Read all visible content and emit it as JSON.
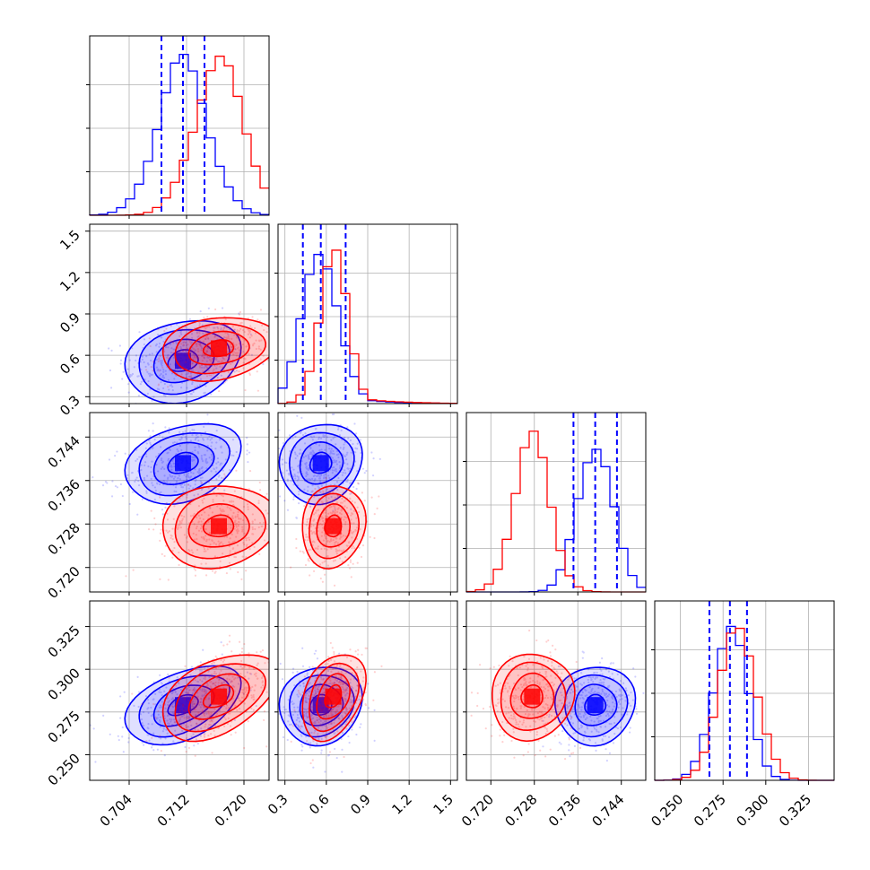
{
  "chart_data": {
    "type": "corner",
    "grid": true,
    "colors": {
      "series_a": "#0000ff",
      "series_b": "#ff0000"
    },
    "series": [
      {
        "color": "blue",
        "mean": [
          0.7115,
          0.56,
          0.7392,
          0.279
        ],
        "sd": [
          0.0035,
          0.13,
          0.0032,
          0.01
        ],
        "quantiles": [
          [
            0.7085,
            0.7115,
            0.7145
          ],
          [
            0.43,
            0.56,
            0.74
          ],
          [
            0.7352,
            0.7392,
            0.7432
          ],
          [
            0.267,
            0.279,
            0.289
          ]
        ]
      },
      {
        "color": "red",
        "mean": [
          0.7165,
          0.65,
          0.7276,
          0.284
        ],
        "sd": [
          0.0035,
          0.1,
          0.0033,
          0.011
        ]
      }
    ],
    "correlations": {
      "blue": {
        "1-0": 0.2,
        "2-0": 0.3,
        "2-1": 0.1,
        "3-0": 0.45,
        "3-1": 0.1,
        "3-2": 0.05
      },
      "red": {
        "1-0": 0.2,
        "2-0": 0.1,
        "2-1": 0.1,
        "3-0": 0.45,
        "3-1": 0.35,
        "3-2": 0.05
      }
    },
    "params": [
      {
        "range": [
          0.6985,
          0.7235
        ],
        "ticks": [
          "0.704",
          "0.712",
          "0.720"
        ],
        "tick_values": [
          0.704,
          0.712,
          0.72
        ]
      },
      {
        "range": [
          0.25,
          1.55
        ],
        "ticks": [
          "0.3",
          "0.6",
          "0.9",
          "1.2",
          "1.5"
        ],
        "tick_values": [
          0.3,
          0.6,
          0.9,
          1.2,
          1.5
        ]
      },
      {
        "range": [
          0.7155,
          0.7485
        ],
        "ticks": [
          "0.720",
          "0.728",
          "0.736",
          "0.744"
        ],
        "tick_values": [
          0.72,
          0.728,
          0.736,
          0.744
        ]
      },
      {
        "range": [
          0.235,
          0.34
        ],
        "ticks": [
          "0.250",
          "0.275",
          "0.300",
          "0.325"
        ],
        "tick_values": [
          0.25,
          0.275,
          0.3,
          0.325
        ]
      }
    ]
  }
}
